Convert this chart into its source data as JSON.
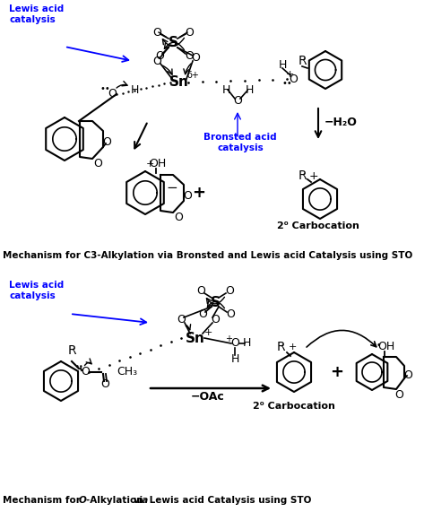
{
  "title1": "Mechanism for C3-Alkylation via Bronsted and Lewis acid Catalysis using STO",
  "title2": "Mechanism for O-Alkylation via Lewis acid Catalysis using STO",
  "lewis_acid": "Lewis acid\ncatalysis",
  "bronsted_acid": "Bronsted acid\ncatalysis",
  "minus_h2o": "−H₂O",
  "minus_oac": "−OAc",
  "carbocation1": "2⁰ Carbocation",
  "carbocation2": "2⁰ Carbocation",
  "bg_color": "#ffffff",
  "black": "#000000",
  "blue": "#0000FF"
}
